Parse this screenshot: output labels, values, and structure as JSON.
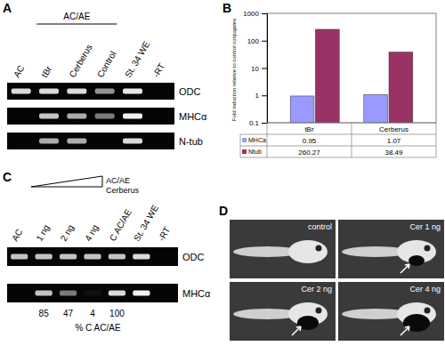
{
  "chart_data": {
    "type": "bar",
    "y_label": "Fold induction relative to control conjugates",
    "categories": [
      "tBr",
      "Cerberus"
    ],
    "series": [
      {
        "name": "MHCa",
        "color": "#9999ff",
        "values": [
          0.95,
          1.07
        ]
      },
      {
        "name": "Ntub",
        "color": "#993366",
        "values": [
          260.27,
          38.49
        ]
      }
    ],
    "log": "y",
    "grid": false,
    "ylim": [
      0.1,
      1000
    ],
    "yticks": [
      0.1,
      1,
      10,
      100,
      1000
    ]
  },
  "figure": {
    "panel_a": {
      "letter": "A",
      "group_label": "AC/AE",
      "lanes": [
        "AC",
        "tBr",
        "Cerberus",
        "Control",
        "St. 34 WE",
        "-RT"
      ],
      "rows": [
        {
          "name": "ODC",
          "bands": [
            0.9,
            0.9,
            0.9,
            0.6,
            0.95,
            0
          ]
        },
        {
          "name": "MHCα",
          "bands": [
            0,
            0.8,
            0.7,
            0.5,
            1,
            0
          ]
        },
        {
          "name": "N-tub",
          "bands": [
            0,
            0.7,
            0.7,
            0,
            0.9,
            0
          ]
        }
      ]
    },
    "panel_b": {
      "letter": "B"
    },
    "panel_c": {
      "letter": "C",
      "wedge_labels": [
        "AC/AE",
        "Cerberus"
      ],
      "lanes": [
        "AC",
        "1 ng",
        "2 ng",
        "4 ng",
        "C AC/AE",
        "St. 34 WE",
        "-RT"
      ],
      "rows": [
        {
          "name": "ODC",
          "bands": [
            0.8,
            0.8,
            0.8,
            0.8,
            0.8,
            0.9,
            0
          ]
        },
        {
          "name": "MHCα",
          "bands": [
            0,
            0.8,
            0.5,
            0.05,
            0.9,
            1,
            0
          ]
        }
      ],
      "percent_values": [
        null,
        85,
        47,
        4,
        100,
        null,
        null
      ],
      "percent_label": "% C AC/AE"
    },
    "panel_d": {
      "letter": "D",
      "images": [
        "control",
        "Cer 1 ng",
        "Cer 2 ng",
        "Cer 4 ng"
      ]
    }
  }
}
